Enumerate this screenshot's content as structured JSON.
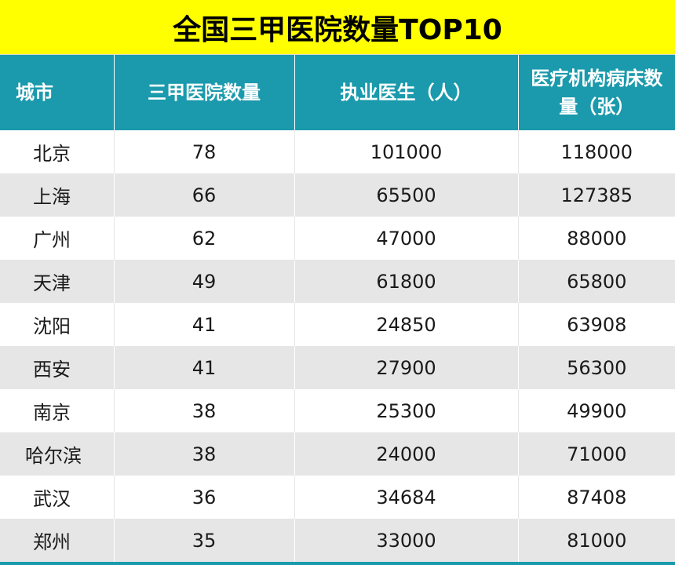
{
  "title": "全国三甲医院数量TOP10",
  "colors": {
    "title_bg": "#ffff00",
    "header_bg": "#1a9aac",
    "row_alt_bg": "#e6e6e6"
  },
  "columns": [
    "城市",
    "三甲医院数量",
    "执业医生（人）",
    "医疗机构病床数量（张）"
  ],
  "rows": [
    {
      "city": "北京",
      "hospitals": "78",
      "doctors": "101000",
      "beds": "118000"
    },
    {
      "city": "上海",
      "hospitals": "66",
      "doctors": "65500",
      "beds": "127385"
    },
    {
      "city": "广州",
      "hospitals": "62",
      "doctors": "47000",
      "beds": "88000"
    },
    {
      "city": "天津",
      "hospitals": "49",
      "doctors": "61800",
      "beds": "65800"
    },
    {
      "city": "沈阳",
      "hospitals": "41",
      "doctors": "24850",
      "beds": "63908"
    },
    {
      "city": "西安",
      "hospitals": "41",
      "doctors": "27900",
      "beds": "56300"
    },
    {
      "city": "南京",
      "hospitals": "38",
      "doctors": "25300",
      "beds": "49900"
    },
    {
      "city": "哈尔滨",
      "hospitals": "38",
      "doctors": "24000",
      "beds": "71000"
    },
    {
      "city": "武汉",
      "hospitals": "36",
      "doctors": "34684",
      "beds": "87408"
    },
    {
      "city": "郑州",
      "hospitals": "35",
      "doctors": "33000",
      "beds": "81000"
    }
  ]
}
